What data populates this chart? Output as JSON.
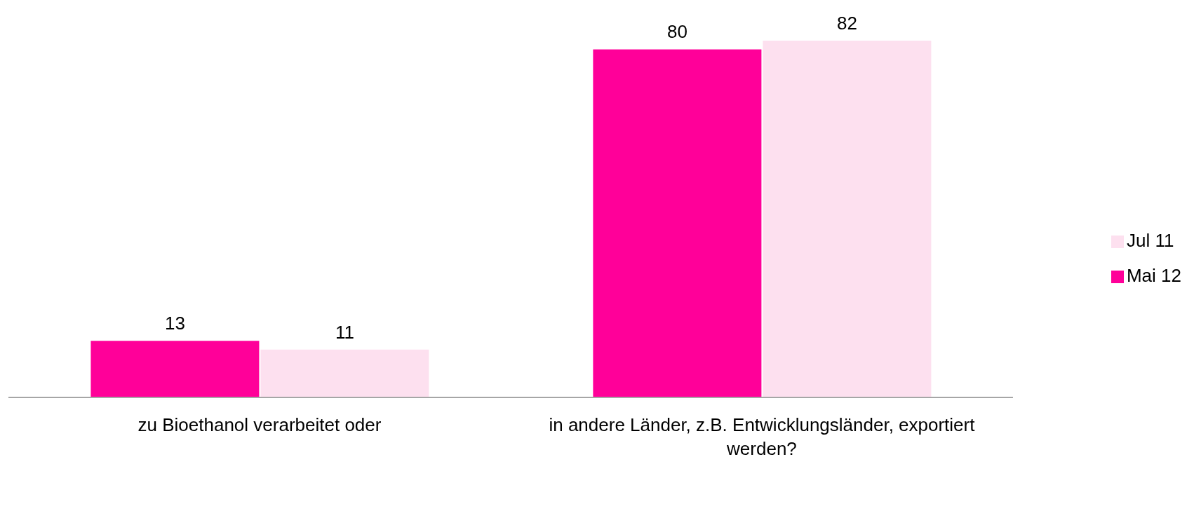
{
  "chart_data": {
    "type": "bar",
    "categories": [
      "zu Bioethanol verarbeitet oder",
      "in andere Länder, z.B. Entwicklungsländer, exportiert werden?"
    ],
    "series": [
      {
        "name": "Mai 12",
        "color": "#ff0099",
        "values": [
          13,
          80
        ]
      },
      {
        "name": "Jul 11",
        "color": "#fde0ef",
        "values": [
          11,
          82
        ]
      }
    ],
    "data_labels": true,
    "legend": "right",
    "grid": false
  }
}
